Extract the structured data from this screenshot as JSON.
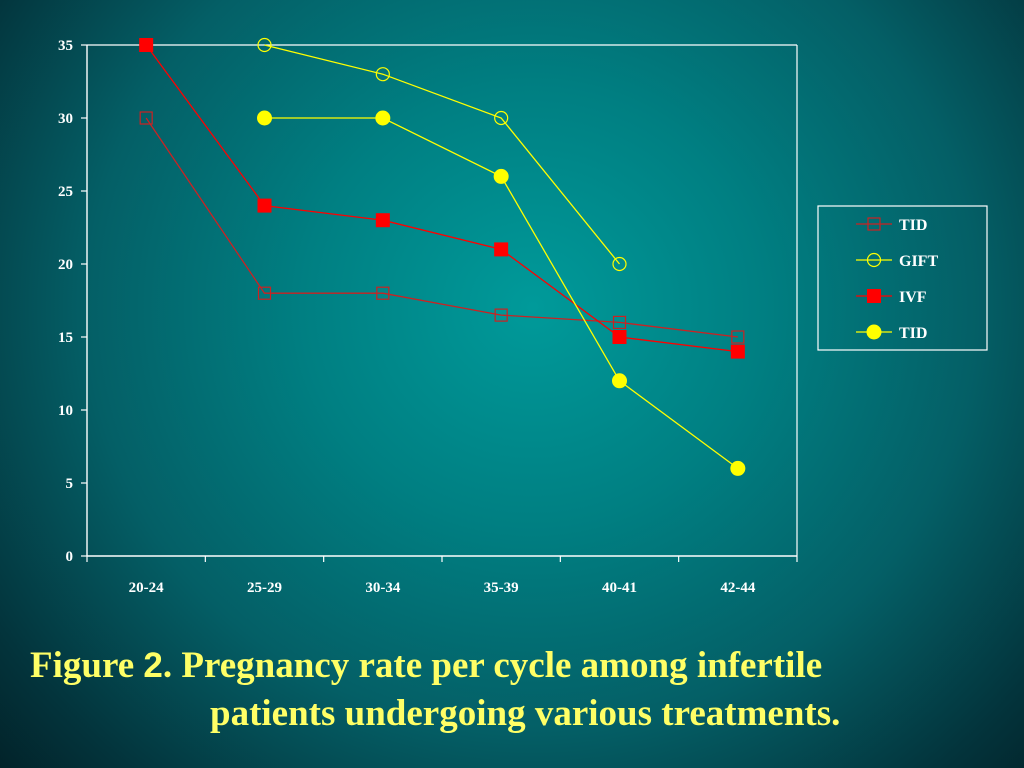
{
  "chart_data": {
    "type": "line",
    "categories": [
      "20-24",
      "25-29",
      "30-34",
      "35-39",
      "40-41",
      "42-44"
    ],
    "ylim": [
      0,
      35
    ],
    "yticks": [
      0,
      5,
      10,
      15,
      20,
      25,
      30,
      35
    ],
    "grid": false,
    "legend_position": "right",
    "series": [
      {
        "name": "TID",
        "marker": "square-open",
        "color": "#cc2222",
        "values": [
          30,
          18,
          18,
          16.5,
          16,
          15
        ]
      },
      {
        "name": "GIFT",
        "marker": "circle-open",
        "color": "#ffff00",
        "values": [
          null,
          35,
          33,
          30,
          20,
          null
        ]
      },
      {
        "name": "IVF",
        "marker": "square-filled",
        "color": "#ff0000",
        "values": [
          35,
          24,
          23,
          21,
          15,
          14
        ]
      },
      {
        "name": "TID",
        "marker": "circle-filled",
        "color": "#ffff00",
        "values": [
          null,
          30,
          30,
          26,
          12,
          6
        ]
      }
    ]
  },
  "caption": {
    "prefix": "Figure ",
    "number": "2",
    "line1_rest": ". Pregnancy rate per cycle among infertile",
    "line2": "patients undergoing various treatments."
  }
}
